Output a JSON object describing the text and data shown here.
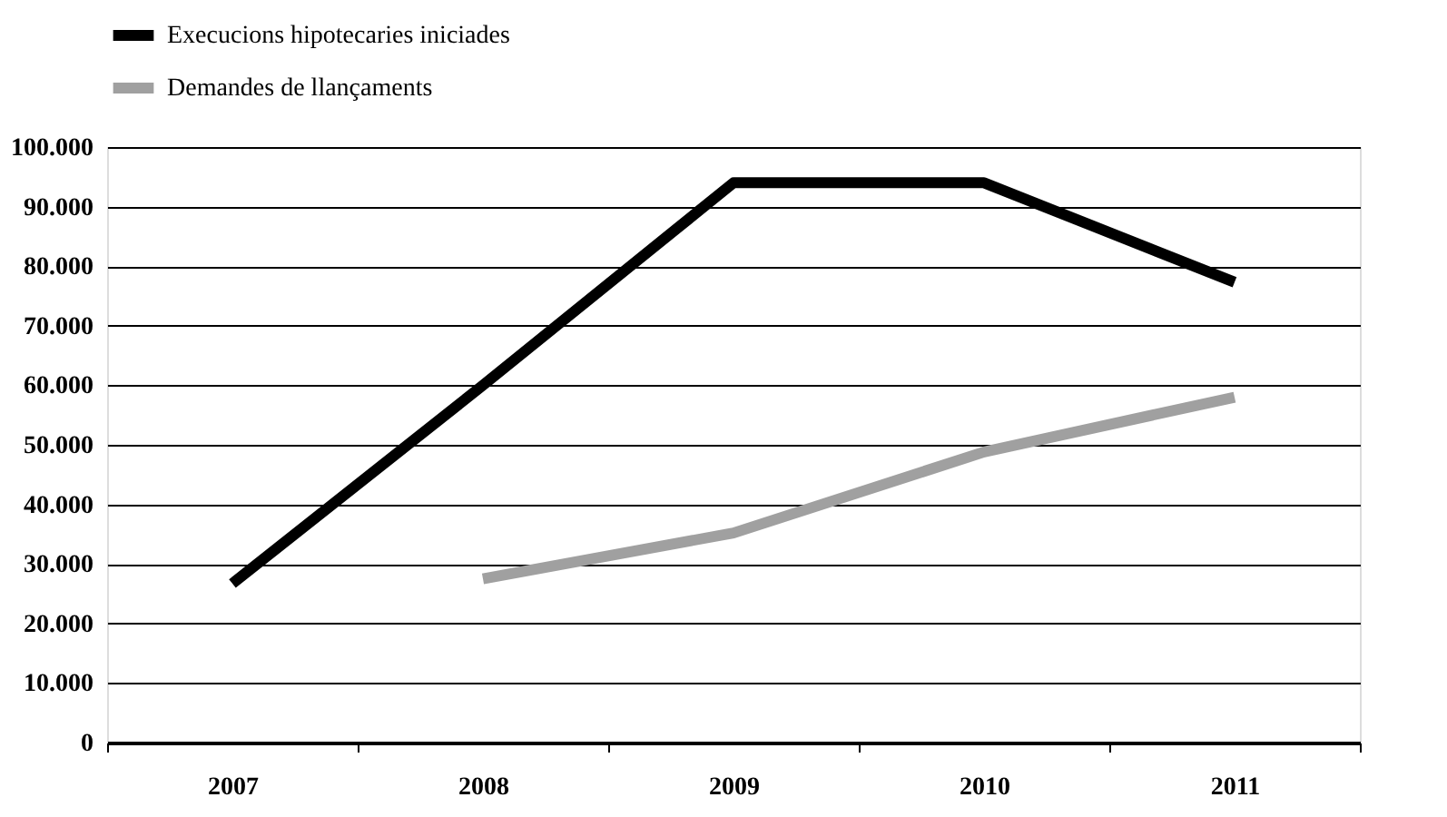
{
  "chart_data": {
    "type": "line",
    "categories": [
      "2007",
      "2008",
      "2009",
      "2010",
      "2011"
    ],
    "series": [
      {
        "name": "Execucions hipotecaries iniciades",
        "color": "#000000",
        "values": [
          26700,
          60000,
          94000,
          94000,
          77300
        ]
      },
      {
        "name": "Demandes de llançaments",
        "color": "#a0a0a0",
        "values": [
          null,
          27500,
          35200,
          48800,
          58000
        ]
      }
    ],
    "ylim": [
      0,
      100000
    ],
    "yticks": [
      {
        "value": 0,
        "label": "0"
      },
      {
        "value": 10000,
        "label": "10.000"
      },
      {
        "value": 20000,
        "label": "20.000"
      },
      {
        "value": 30000,
        "label": "30.000"
      },
      {
        "value": 40000,
        "label": "40.000"
      },
      {
        "value": 50000,
        "label": "50.000"
      },
      {
        "value": 60000,
        "label": "60.000"
      },
      {
        "value": 70000,
        "label": "70.000"
      },
      {
        "value": 80000,
        "label": "80.000"
      },
      {
        "value": 90000,
        "label": "90.000"
      },
      {
        "value": 100000,
        "label": "100.000"
      }
    ],
    "grid": "y",
    "legend": "top left",
    "marker": "none",
    "line_style": "solid"
  }
}
